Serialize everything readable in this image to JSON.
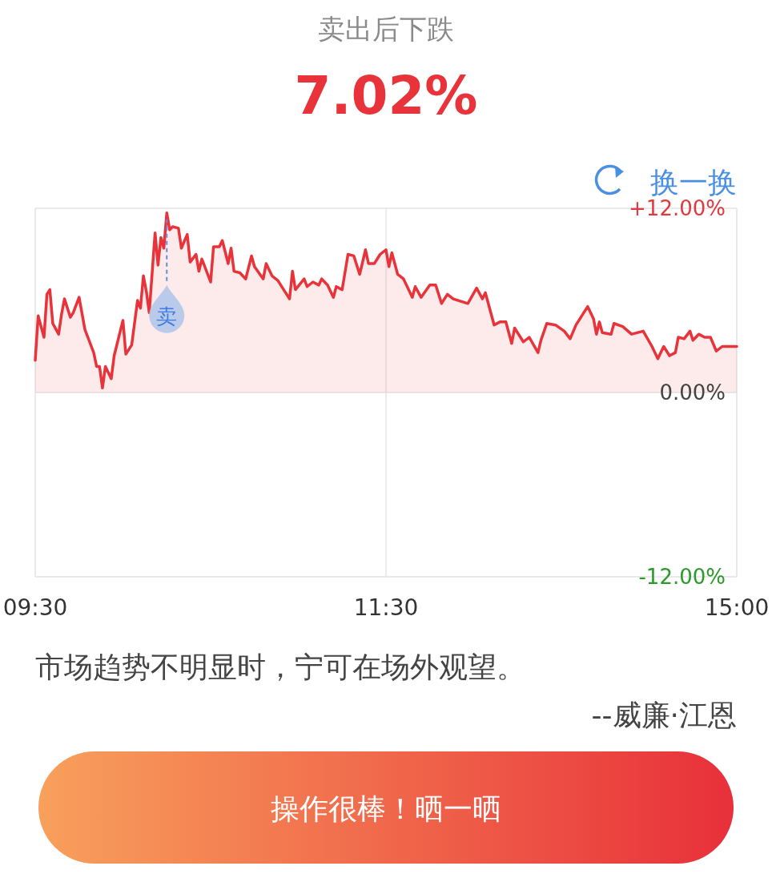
{
  "chart_data": {
    "type": "area",
    "title": "卖出后下跌",
    "subtitle": "7.02%",
    "categories": [
      "09:30",
      null,
      null,
      null,
      null,
      null,
      null,
      null,
      null,
      null,
      null,
      null,
      null,
      null,
      null,
      null,
      null,
      null,
      null,
      null,
      null,
      null,
      null,
      null,
      null,
      null,
      null,
      null,
      null,
      null,
      null,
      null,
      null,
      null,
      null,
      null,
      null,
      null,
      null,
      null,
      null,
      null,
      null,
      null,
      null,
      null,
      null,
      null,
      null,
      null,
      null,
      null,
      null,
      null,
      null,
      null,
      null,
      null,
      null,
      null,
      null,
      null,
      null,
      null,
      null,
      null,
      null,
      null,
      null,
      null,
      null,
      null,
      null,
      null,
      null,
      null,
      null,
      null,
      null,
      null,
      null,
      null,
      null,
      null,
      null,
      null,
      null,
      null,
      null,
      null,
      null,
      null,
      null,
      null,
      null,
      null,
      null,
      null,
      null,
      null,
      null,
      null,
      null,
      null,
      null,
      null,
      null,
      null,
      null,
      null,
      null,
      null,
      null,
      null,
      null,
      null,
      null,
      null,
      null,
      null,
      "11:30",
      null,
      null,
      null,
      null,
      null,
      null,
      null,
      null,
      null,
      null,
      null,
      null,
      null,
      null,
      null,
      null,
      null,
      null,
      null,
      null,
      null,
      null,
      null,
      null,
      null,
      null,
      null,
      null,
      null,
      null,
      null,
      null,
      null,
      null,
      null,
      null,
      null,
      null,
      null,
      null,
      null,
      null,
      null,
      null,
      null,
      null,
      null,
      null,
      null,
      null,
      null,
      null,
      null,
      null,
      null,
      null,
      null,
      null,
      null,
      null,
      null,
      null,
      null,
      null,
      null,
      null,
      null,
      null,
      null,
      null,
      null,
      null,
      null,
      null,
      null,
      null,
      null,
      null,
      null,
      null,
      null,
      null,
      null,
      null,
      null,
      null,
      null,
      null,
      null,
      null,
      null,
      null,
      null,
      null,
      null,
      null,
      null,
      null,
      null,
      null,
      null,
      null,
      null,
      null,
      null,
      null,
      null,
      null,
      null,
      null,
      null,
      null,
      null,
      null,
      null,
      null,
      null,
      null,
      null,
      "15:00"
    ],
    "series": [
      {
        "color": "#e8333a",
        "values": [
          2.1,
          5.0,
          null,
          3.6,
          6.4,
          6.7,
          4.5,
          null,
          3.8,
          5.1,
          6.1,
          null,
          4.9,
          5.2,
          null,
          6.2,
          null,
          4.1,
          3.6,
          null,
          2.6,
          1.7,
          1.7,
          0.3,
          1.7,
          null,
          0.9,
          2.4,
          null,
          null,
          4.7,
          2.5,
          null,
          3.1,
          null,
          6.0,
          5.5,
          7.6,
          6.6,
          5.2,
          7.8,
          10.4,
          8.3,
          10.1,
          9.4,
          11.7,
          10.6,
          10.8,
          null,
          10.7,
          9.4,
          null,
          10.3,
          8.5,
          null,
          9.0,
          7.9,
          8.7,
          null,
          null,
          7.2,
          9.5,
          null,
          9.5,
          9.9,
          null,
          8.4,
          9.4,
          7.9,
          null,
          7.8,
          null,
          7.4,
          null,
          8.9,
          8.2,
          null,
          null,
          7.4,
          8.4,
          null,
          7.6,
          null,
          7.3,
          null,
          null,
          null,
          6.1,
          7.9,
          6.7,
          null,
          null,
          7.4,
          6.9,
          null,
          7.2,
          null,
          7.0,
          7.4,
          null,
          7.0,
          null,
          6.2,
          6.9,
          null,
          6.7,
          null,
          9.0,
          null,
          8.9,
          null,
          7.7,
          null,
          9.3,
          8.4,
          null,
          8.4,
          null,
          9.0,
          null,
          9.3,
          8.2,
          9.1,
          null,
          7.7,
          null,
          7.4,
          null,
          null,
          6.2,
          6.9,
          null,
          6.2,
          null,
          null,
          7.0,
          null,
          7.0,
          null,
          5.8,
          null,
          6.4,
          null,
          6.1,
          null,
          null,
          null,
          null,
          5.8,
          null,
          null,
          6.8,
          null,
          6.1,
          6.5,
          null,
          null,
          4.4,
          null,
          4.6,
          null,
          4.6,
          null,
          3.2,
          4.2,
          null,
          null,
          3.3,
          null,
          3.6,
          null,
          null,
          2.6,
          3.4,
          null,
          4.5,
          null,
          null,
          4.4,
          null,
          null,
          4.0,
          null,
          3.5,
          null,
          4.4,
          null,
          5.0,
          null,
          5.6,
          null,
          4.8,
          3.8,
          4.6,
          3.9,
          null,
          null,
          3.8,
          4.5,
          null,
          null,
          4.3,
          null,
          null,
          3.8,
          null,
          null,
          null,
          4.0,
          null,
          null,
          3.0,
          null,
          2.2,
          null,
          3.0,
          null,
          2.4,
          null,
          2.6,
          3.6,
          null,
          3.5,
          null,
          4.0,
          3.4,
          null,
          3.8,
          null,
          3.6,
          null,
          3.6,
          null,
          2.7,
          null,
          3.0,
          null,
          null,
          3.0,
          null,
          3.0
        ]
      }
    ],
    "ylim": [
      -12,
      12
    ],
    "yticks": [
      {
        "value": 12,
        "label": "+12.00%"
      },
      {
        "value": 0,
        "label": "0.00%"
      },
      {
        "value": -12,
        "label": "-12.00%"
      }
    ],
    "grid": true,
    "annotations": [
      "换一换",
      {
        "text": "卖",
        "y": 11.7
      },
      "市场趋势不明显时，宁可在场外观望。",
      "--威廉·江恩",
      "操作很棒！晒一晒"
    ]
  }
}
